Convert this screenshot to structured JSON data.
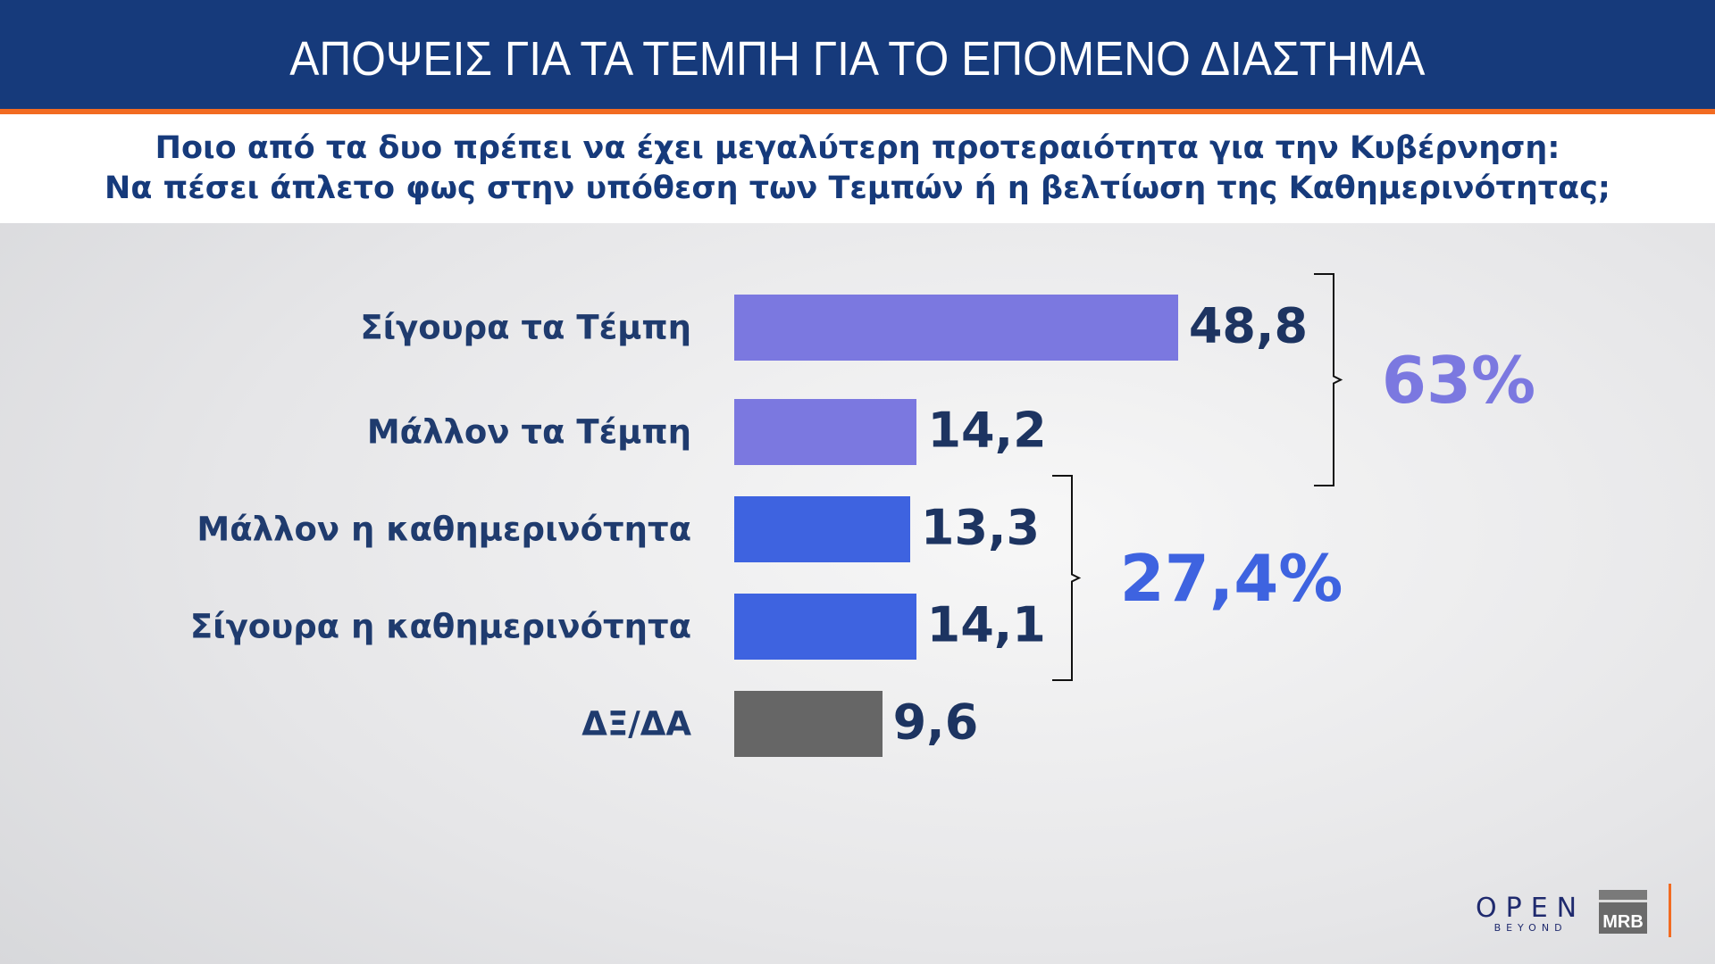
{
  "header": {
    "title": "ΑΠΟΨΕΙΣ ΓΙΑ ΤΑ ΤΕΜΠΗ ΓΙΑ ΤΟ ΕΠΟΜΕΝΟ ΔΙΑΣΤΗΜΑ"
  },
  "subtitle": {
    "line1": "Ποιο από τα δυο πρέπει να έχει μεγαλύτερη προτεραιότητα  για την Κυβέρνηση:",
    "line2": "Να πέσει άπλετο φως στην υπόθεση των Τεμπών  ή η βελτίωση της Καθημερινότητας;"
  },
  "chart_data": {
    "type": "bar",
    "orientation": "horizontal",
    "categories": [
      "Σίγουρα τα Τέμπη",
      "Μάλλον τα Τέμπη",
      "Μάλλον η καθημερινότητα",
      "Σίγουρα η καθημερινότητα",
      "ΔΞ/ΔΑ"
    ],
    "values": [
      48.8,
      14.2,
      13.3,
      14.1,
      9.6
    ],
    "value_labels": [
      "48,8",
      "14,2",
      "13,3",
      "14,1",
      "9,6"
    ],
    "colors": [
      "#7b78e0",
      "#7b78e0",
      "#3e63e0",
      "#3e63e0",
      "#666666"
    ],
    "groups": [
      {
        "members": [
          0,
          1
        ],
        "total_label": "63%",
        "color": "#7b78e0"
      },
      {
        "members": [
          2,
          3
        ],
        "total_label": "27,4%",
        "color": "#3e63e0"
      }
    ]
  },
  "logos": {
    "open": "OPEN",
    "open_sub": "BEYOND",
    "mrb": "MRB"
  }
}
